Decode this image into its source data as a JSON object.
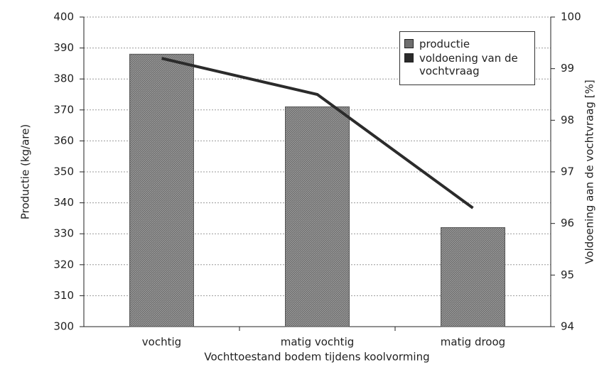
{
  "chart_data": {
    "type": "bar",
    "xlabel": "Vochttoestand bodem tijdens koolvorming",
    "ylabel": "Productie (kg/are)",
    "y2label": "Voldoening aan de vochtvraag [%]",
    "categories": [
      "vochtig",
      "matig vochtig",
      "matig droog"
    ],
    "series": [
      {
        "name": "productie",
        "color": "#6e6e6e",
        "values": [
          388,
          371,
          332
        ]
      },
      {
        "name": "voldoening van de vochtvraag",
        "color": "#2b2b2b",
        "type": "line",
        "axis": "y2",
        "values": [
          99.2,
          98.5,
          96.3
        ]
      }
    ],
    "ylim": [
      300,
      400
    ],
    "yticks": [
      300,
      310,
      320,
      330,
      340,
      350,
      360,
      370,
      380,
      390,
      400
    ],
    "y2lim": [
      94,
      100
    ],
    "y2ticks": [
      94,
      95,
      96,
      97,
      98,
      99,
      100
    ],
    "grid": true
  }
}
